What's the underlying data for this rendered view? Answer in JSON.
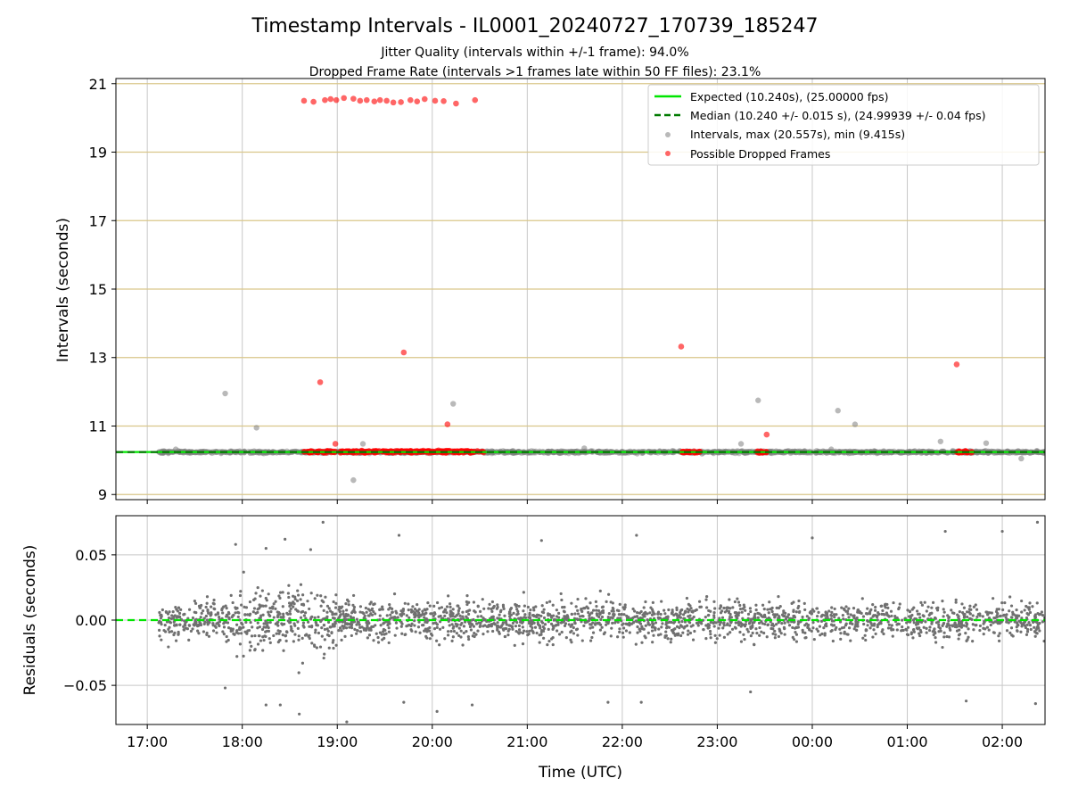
{
  "chart_data": [
    {
      "type": "scatter",
      "title": "Timestamp Intervals - IL0001_20240727_170739_185247",
      "subtitle_lines": [
        "Jitter Quality (intervals within +/-1 frame): 94.0%",
        "Dropped Frame Rate (intervals >1 frames late within 50 FF files): 23.1%"
      ],
      "ylabel": "Intervals (seconds)",
      "ylim": [
        8.85,
        21.15
      ],
      "yticks": [
        "9",
        "11",
        "13",
        "15",
        "17",
        "19",
        "21"
      ],
      "x_unit": "hours since 17:00 UTC",
      "xlim": [
        -0.33,
        9.45
      ],
      "grid": true,
      "legend_position": "top-right",
      "legend": [
        "Expected (10.240s), (25.00000 fps)",
        "Median (10.240 +/- 0.015 s), (24.99939 +/- 0.04 fps)",
        "Intervals, max (20.557s), min (9.415s)",
        "Possible Dropped Frames"
      ],
      "expected_interval": 10.24,
      "median_interval": 10.24,
      "series": [
        {
          "name": "Intervals, max (20.557s), min (9.415s)",
          "color": "#808080",
          "baseline": {
            "x_start": 0.12,
            "x_end": 9.45,
            "center": 10.24,
            "spread": 0.03
          },
          "outliers": [
            [
              0.82,
              11.95
            ],
            [
              1.15,
              10.95
            ],
            [
              2.17,
              9.42
            ],
            [
              2.27,
              10.48
            ],
            [
              3.22,
              11.65
            ],
            [
              6.25,
              10.48
            ],
            [
              6.43,
              11.75
            ],
            [
              7.27,
              11.45
            ],
            [
              7.45,
              11.05
            ],
            [
              8.35,
              10.55
            ],
            [
              8.83,
              10.5
            ],
            [
              9.2,
              10.05
            ],
            [
              0.3,
              10.32
            ],
            [
              4.6,
              10.35
            ],
            [
              7.2,
              10.32
            ]
          ]
        },
        {
          "name": "Possible Dropped Frames",
          "color": "#ff0000",
          "points": [
            [
              1.65,
              20.5
            ],
            [
              1.75,
              20.47
            ],
            [
              1.87,
              20.52
            ],
            [
              1.93,
              20.55
            ],
            [
              1.99,
              20.52
            ],
            [
              2.07,
              20.58
            ],
            [
              2.17,
              20.56
            ],
            [
              2.24,
              20.5
            ],
            [
              2.31,
              20.52
            ],
            [
              2.39,
              20.48
            ],
            [
              2.45,
              20.52
            ],
            [
              2.52,
              20.5
            ],
            [
              2.59,
              20.45
            ],
            [
              2.67,
              20.46
            ],
            [
              2.77,
              20.52
            ],
            [
              2.84,
              20.48
            ],
            [
              2.92,
              20.55
            ],
            [
              3.03,
              20.5
            ],
            [
              3.12,
              20.49
            ],
            [
              3.25,
              20.42
            ],
            [
              3.45,
              20.52
            ],
            [
              1.82,
              12.28
            ],
            [
              2.7,
              13.15
            ],
            [
              3.16,
              11.05
            ],
            [
              1.98,
              10.48
            ],
            [
              5.62,
              13.32
            ],
            [
              6.52,
              10.75
            ],
            [
              8.52,
              12.8
            ]
          ],
          "clusters": [
            {
              "x_start": 1.65,
              "x_end": 3.55,
              "center": 10.25
            },
            {
              "x_start": 5.62,
              "x_end": 5.82,
              "center": 10.24
            },
            {
              "x_start": 6.42,
              "x_end": 6.52,
              "center": 10.24
            },
            {
              "x_start": 8.52,
              "x_end": 8.68,
              "center": 10.24
            }
          ]
        }
      ]
    },
    {
      "type": "scatter",
      "ylabel": "Residuals (seconds)",
      "xlabel": "Time (UTC)",
      "ylim": [
        -0.08,
        0.08
      ],
      "yticks": [
        "0.05",
        "0.00",
        "−0.05"
      ],
      "xticks": [
        "17:00",
        "18:00",
        "19:00",
        "20:00",
        "21:00",
        "22:00",
        "23:00",
        "00:00",
        "01:00",
        "02:00"
      ],
      "x_unit": "hours since 17:00 UTC",
      "xlim": [
        -0.33,
        9.45
      ],
      "grid": true,
      "zero_line": 0.0,
      "series": [
        {
          "name": "",
          "color": "#707070",
          "x_start": 0.12,
          "x_end": 9.45,
          "typical_spread": 0.012,
          "outliers": [
            [
              0.93,
              0.058
            ],
            [
              1.25,
              0.055
            ],
            [
              1.45,
              0.062
            ],
            [
              1.72,
              0.054
            ],
            [
              1.85,
              0.075
            ],
            [
              2.65,
              0.065
            ],
            [
              4.15,
              0.061
            ],
            [
              5.15,
              0.065
            ],
            [
              7.0,
              0.063
            ],
            [
              8.4,
              0.068
            ],
            [
              9.0,
              0.068
            ],
            [
              9.37,
              0.075
            ],
            [
              0.82,
              -0.052
            ],
            [
              1.25,
              -0.065
            ],
            [
              1.4,
              -0.065
            ],
            [
              1.6,
              -0.072
            ],
            [
              2.1,
              -0.078
            ],
            [
              2.7,
              -0.063
            ],
            [
              3.05,
              -0.07
            ],
            [
              3.42,
              -0.065
            ],
            [
              4.85,
              -0.063
            ],
            [
              5.2,
              -0.063
            ],
            [
              6.35,
              -0.055
            ],
            [
              8.62,
              -0.062
            ],
            [
              9.35,
              -0.064
            ]
          ]
        }
      ]
    }
  ],
  "legend_colors": {
    "expected": "#00e600",
    "median": "#007a00",
    "intervals": "#808080",
    "dropped": "#ff0000",
    "residuals": "#707070",
    "hgrid_top": "#d9c68a",
    "grid": "#c8c8c8"
  }
}
